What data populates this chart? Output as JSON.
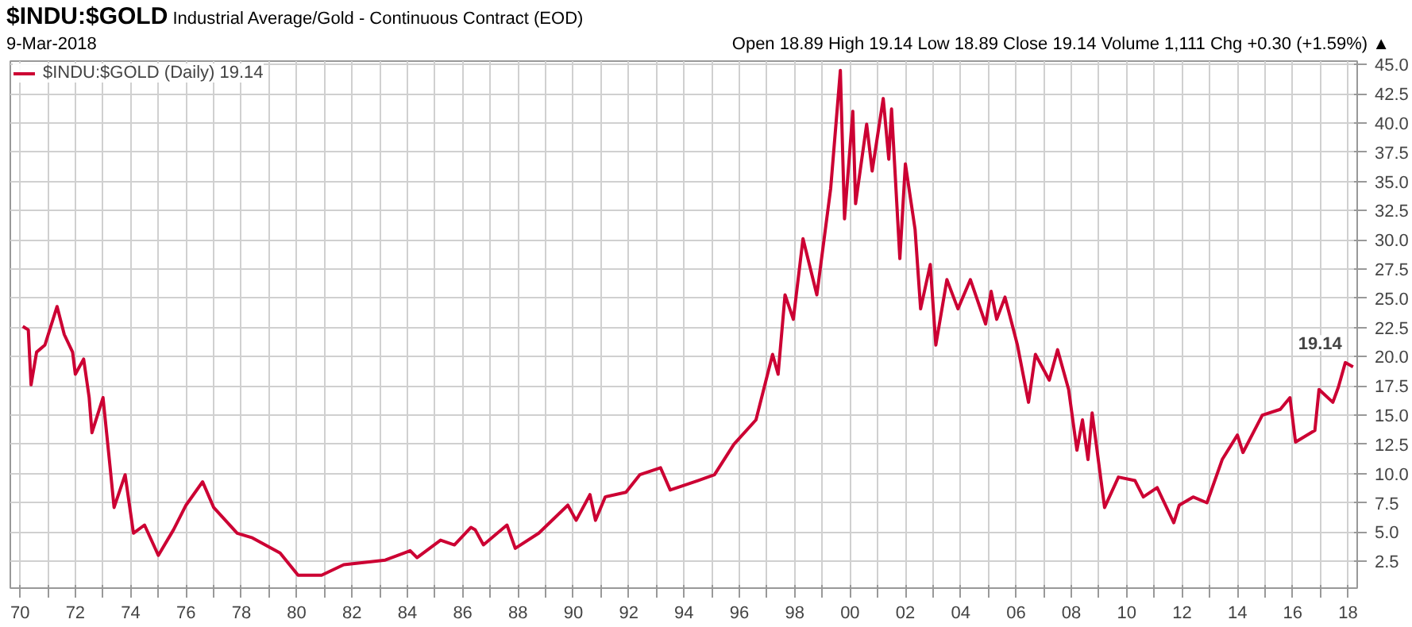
{
  "chart_data": {
    "type": "line",
    "title": "$INDU:$GOLD",
    "subtitle": "9-Mar-2018",
    "annotations": [
      "Industrial Average/Gold - Continuous Contract (EOD)",
      "Open 18.89 High 19.14 Low 18.89 Close 19.14 Volume 1,111 Chg +0.30 (+1.59%) ▲",
      {
        "text": "19.14",
        "x": 2018.18,
        "y": 19.14
      }
    ],
    "series": [
      {
        "name": "$INDU:$GOLD (Daily) 19.14",
        "color": "#cc0033",
        "x": [
          1970.1,
          1970.3,
          1970.4,
          1970.6,
          1970.9,
          1971.34,
          1971.6,
          1971.9,
          1972.0,
          1972.3,
          1972.5,
          1972.6,
          1972.8,
          1973.0,
          1973.25,
          1973.4,
          1973.8,
          1974.1,
          1974.5,
          1975.0,
          1975.55,
          1976.0,
          1976.6,
          1977.0,
          1977.85,
          1978.4,
          1979.4,
          1980.05,
          1980.9,
          1981.7,
          1983.2,
          1984.1,
          1984.35,
          1985.2,
          1985.7,
          1986.3,
          1986.45,
          1986.75,
          1987.6,
          1987.9,
          1988.75,
          1989.8,
          1990.1,
          1990.6,
          1990.8,
          1991.15,
          1991.9,
          1992.4,
          1993.15,
          1993.5,
          1994.5,
          1995.1,
          1995.8,
          1996.6,
          1997.2,
          1997.4,
          1997.65,
          1997.95,
          1998.3,
          1998.8,
          1999.3,
          1999.65,
          1999.8,
          2000.1,
          2000.2,
          2000.6,
          2000.8,
          2001.2,
          2001.4,
          2001.5,
          2001.8,
          2002.0,
          2002.35,
          2002.55,
          2002.9,
          2003.1,
          2003.5,
          2003.9,
          2004.35,
          2004.9,
          2005.1,
          2005.3,
          2005.6,
          2006.05,
          2006.45,
          2006.7,
          2007.2,
          2007.5,
          2007.9,
          2008.2,
          2008.4,
          2008.6,
          2008.75,
          2009.2,
          2009.7,
          2010.3,
          2010.6,
          2011.1,
          2011.7,
          2011.9,
          2012.4,
          2012.9,
          2013.45,
          2014.0,
          2014.2,
          2014.9,
          2015.55,
          2015.9,
          2016.1,
          2016.8,
          2016.95,
          2017.45,
          2017.65,
          2017.9,
          2018.18
        ],
        "values": [
          22.6,
          22.3,
          17.6,
          20.4,
          21.0,
          24.3,
          21.9,
          20.4,
          18.5,
          19.8,
          16.5,
          13.5,
          15.0,
          16.5,
          10.7,
          7.1,
          9.9,
          4.9,
          5.6,
          3.0,
          5.2,
          7.3,
          9.3,
          7.1,
          4.9,
          4.5,
          3.2,
          1.3,
          1.3,
          2.2,
          2.6,
          3.4,
          2.8,
          4.3,
          3.9,
          5.4,
          5.2,
          3.9,
          5.6,
          3.6,
          4.9,
          7.3,
          6.0,
          8.2,
          6.0,
          8.0,
          8.4,
          9.9,
          10.5,
          8.6,
          9.4,
          9.9,
          12.5,
          14.6,
          20.2,
          18.5,
          25.3,
          23.2,
          30.1,
          25.3,
          34.4,
          44.5,
          31.8,
          41.0,
          33.1,
          39.9,
          35.9,
          42.1,
          36.9,
          41.2,
          28.4,
          36.5,
          30.9,
          24.1,
          27.9,
          21.0,
          26.6,
          24.1,
          26.6,
          22.8,
          25.6,
          23.2,
          25.1,
          21.0,
          16.1,
          20.2,
          18.0,
          20.6,
          17.2,
          12.0,
          14.6,
          11.2,
          15.2,
          7.1,
          9.7,
          9.4,
          8.0,
          8.8,
          5.8,
          7.3,
          8.0,
          7.5,
          11.2,
          13.3,
          11.8,
          15.0,
          15.5,
          16.5,
          12.7,
          13.7,
          17.2,
          16.1,
          17.4,
          19.5,
          19.14
        ]
      }
    ],
    "xlim": [
      1969.65,
      2018.33
    ],
    "ylim": [
      0.2,
      45.3
    ],
    "xticks": [
      {
        "value": 1970,
        "label": "70"
      },
      {
        "value": 1971,
        "label": null
      },
      {
        "value": 1972,
        "label": "72"
      },
      {
        "value": 1973,
        "label": null
      },
      {
        "value": 1974,
        "label": "74"
      },
      {
        "value": 1975,
        "label": null
      },
      {
        "value": 1976,
        "label": "76"
      },
      {
        "value": 1977,
        "label": null
      },
      {
        "value": 1978,
        "label": "78"
      },
      {
        "value": 1979,
        "label": null
      },
      {
        "value": 1980,
        "label": "80"
      },
      {
        "value": 1981,
        "label": null
      },
      {
        "value": 1982,
        "label": "82"
      },
      {
        "value": 1983,
        "label": null
      },
      {
        "value": 1984,
        "label": "84"
      },
      {
        "value": 1985,
        "label": null
      },
      {
        "value": 1986,
        "label": "86"
      },
      {
        "value": 1987,
        "label": null
      },
      {
        "value": 1988,
        "label": "88"
      },
      {
        "value": 1989,
        "label": null
      },
      {
        "value": 1990,
        "label": "90"
      },
      {
        "value": 1991,
        "label": null
      },
      {
        "value": 1992,
        "label": "92"
      },
      {
        "value": 1993,
        "label": null
      },
      {
        "value": 1994,
        "label": "94"
      },
      {
        "value": 1995,
        "label": null
      },
      {
        "value": 1996,
        "label": "96"
      },
      {
        "value": 1997,
        "label": null
      },
      {
        "value": 1998,
        "label": "98"
      },
      {
        "value": 1999,
        "label": null
      },
      {
        "value": 2000,
        "label": "00"
      },
      {
        "value": 2001,
        "label": null
      },
      {
        "value": 2002,
        "label": "02"
      },
      {
        "value": 2003,
        "label": null
      },
      {
        "value": 2004,
        "label": "04"
      },
      {
        "value": 2005,
        "label": null
      },
      {
        "value": 2006,
        "label": "06"
      },
      {
        "value": 2007,
        "label": null
      },
      {
        "value": 2008,
        "label": "08"
      },
      {
        "value": 2009,
        "label": null
      },
      {
        "value": 2010,
        "label": "10"
      },
      {
        "value": 2011,
        "label": null
      },
      {
        "value": 2012,
        "label": "12"
      },
      {
        "value": 2013,
        "label": null
      },
      {
        "value": 2014,
        "label": "14"
      },
      {
        "value": 2015,
        "label": null
      },
      {
        "value": 2016,
        "label": "16"
      },
      {
        "value": 2017,
        "label": null
      },
      {
        "value": 2018,
        "label": "18"
      }
    ],
    "yticks": [
      2.5,
      {
        "value": 5,
        "label": "5.0"
      },
      7.5,
      {
        "value": 10,
        "label": "10.0"
      },
      12.5,
      {
        "value": 15,
        "label": "15.0"
      },
      17.5,
      {
        "value": 20,
        "label": "20.0"
      },
      22.5,
      {
        "value": 25,
        "label": "25.0"
      },
      27.5,
      {
        "value": 30,
        "label": "30.0"
      },
      32.5,
      {
        "value": 35,
        "label": "35.0"
      },
      37.5,
      {
        "value": 40,
        "label": "40.0"
      },
      42.5,
      {
        "value": 45,
        "label": "45.0"
      }
    ],
    "grid": true,
    "legend": "top left",
    "line_style": "solid"
  }
}
